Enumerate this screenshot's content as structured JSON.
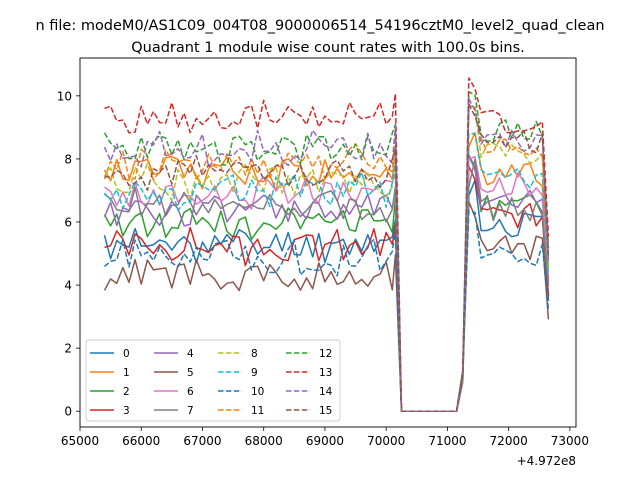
{
  "figure": {
    "suptitle": "n file: modeM0/AS1C09_004T08_9000006514_54196cztM0_level2_quad_clean"
  },
  "chart_data": {
    "type": "line",
    "title": "Quadrant 1 module wise count rates with 100.0s bins.",
    "xlabel": "",
    "ylabel": "",
    "x_offset_label": "+4.972e8",
    "xlim": [
      65000,
      73100
    ],
    "ylim": [
      -0.5,
      11.2
    ],
    "x_ticks": [
      65000,
      66000,
      67000,
      68000,
      69000,
      70000,
      71000,
      72000,
      73000
    ],
    "x_tick_labels": [
      "65000",
      "66000",
      "67000",
      "68000",
      "69000",
      "70000",
      "71000",
      "72000",
      "73000"
    ],
    "y_ticks": [
      0,
      2,
      4,
      6,
      8,
      10
    ],
    "y_tick_labels": [
      "0",
      "2",
      "4",
      "6",
      "8",
      "10"
    ],
    "grid": false,
    "legend_placement": "lower-left",
    "legend_columns": 4,
    "series": [
      {
        "name": "0",
        "color": "#1f77b4",
        "dash": "solid",
        "level1": 5.3,
        "level2": 5.9,
        "seed": 11
      },
      {
        "name": "1",
        "color": "#ff7f0e",
        "dash": "solid",
        "level1": 7.6,
        "level2": 7.5,
        "seed": 12
      },
      {
        "name": "2",
        "color": "#2ca02c",
        "dash": "solid",
        "level1": 6.0,
        "level2": 6.5,
        "seed": 13
      },
      {
        "name": "3",
        "color": "#d62728",
        "dash": "solid",
        "level1": 5.2,
        "level2": 6.2,
        "seed": 14
      },
      {
        "name": "4",
        "color": "#9467bd",
        "dash": "solid",
        "level1": 6.4,
        "level2": 6.6,
        "seed": 15
      },
      {
        "name": "5",
        "color": "#8c564b",
        "dash": "solid",
        "level1": 4.3,
        "level2": 5.2,
        "seed": 16
      },
      {
        "name": "6",
        "color": "#e377c2",
        "dash": "solid",
        "level1": 6.9,
        "level2": 7.2,
        "seed": 17
      },
      {
        "name": "7",
        "color": "#7f7f7f",
        "dash": "solid",
        "level1": 6.5,
        "level2": 6.4,
        "seed": 18
      },
      {
        "name": "8",
        "color": "#bcbd22",
        "dash": "dashed",
        "level1": 7.3,
        "level2": 8.2,
        "seed": 19
      },
      {
        "name": "9",
        "color": "#17becf",
        "dash": "dashed",
        "level1": 7.0,
        "level2": 7.4,
        "seed": 20
      },
      {
        "name": "10",
        "color": "#1f77b4",
        "dash": "dashed",
        "level1": 4.9,
        "level2": 5.0,
        "seed": 21
      },
      {
        "name": "11",
        "color": "#ff7f0e",
        "dash": "dashed",
        "level1": 7.9,
        "level2": 8.4,
        "seed": 22
      },
      {
        "name": "12",
        "color": "#2ca02c",
        "dash": "dashed",
        "level1": 8.3,
        "level2": 8.9,
        "seed": 23
      },
      {
        "name": "13",
        "color": "#d62728",
        "dash": "dashed",
        "level1": 9.3,
        "level2": 9.2,
        "seed": 24
      },
      {
        "name": "14",
        "color": "#9467bd",
        "dash": "dashed",
        "level1": 8.3,
        "level2": 8.6,
        "seed": 25
      },
      {
        "name": "15",
        "color": "#8c564b",
        "dash": "dashed",
        "level1": 7.6,
        "level2": 8.5,
        "seed": 26
      }
    ],
    "x_start": 65400,
    "x_step": 100,
    "segment1_end": 70100,
    "gap_zero": [
      70250,
      71150
    ],
    "segment2_start": 71350,
    "x_end": 72650
  }
}
